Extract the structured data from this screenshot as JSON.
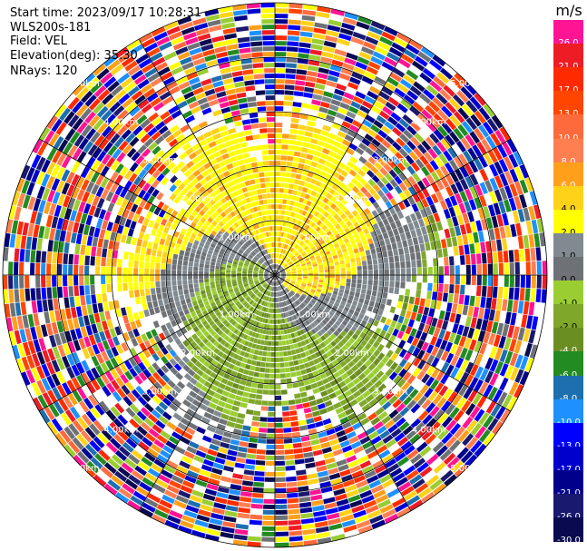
{
  "header": {
    "start_time": "Start time: 2023/09/17 10:28:31",
    "site": "WLS200s-181",
    "field": "Field: VEL",
    "elevation": "Elevation(deg): 35.30",
    "nrays": "NRays: 120"
  },
  "range_ring_labels": [
    "1.00km",
    "2.00km",
    "3.00km",
    "4.00km",
    "5.00km"
  ],
  "colorbar": {
    "unit": "m/s",
    "bins": [
      {
        "label": "26.0",
        "color": "#ff1493"
      },
      {
        "label": "21.0",
        "color": "#ee1c25"
      },
      {
        "label": "17.0",
        "color": "#ff2a00"
      },
      {
        "label": "13.0",
        "color": "#ff4500"
      },
      {
        "label": "10.0",
        "color": "#ff6a3c"
      },
      {
        "label": "8.0",
        "color": "#ff7f50"
      },
      {
        "label": "6.0",
        "color": "#ff9f1a"
      },
      {
        "label": "4.0",
        "color": "#ffd21a"
      },
      {
        "label": "2.0",
        "color": "#ffff00"
      },
      {
        "label": "1.0",
        "color": "#808a90"
      },
      {
        "label": "0.0",
        "color": "#6e7276"
      },
      {
        "label": "-1.0",
        "color": "#9acd32"
      },
      {
        "label": "-2.0",
        "color": "#7fa82a"
      },
      {
        "label": "-4.0",
        "color": "#6b8e23"
      },
      {
        "label": "-6.0",
        "color": "#228b22"
      },
      {
        "label": "-8.0",
        "color": "#1e6fb0"
      },
      {
        "label": "-10.0",
        "color": "#1e90ff"
      },
      {
        "label": "-13.0",
        "color": "#0000ff"
      },
      {
        "label": "-17.0",
        "color": "#0000cd"
      },
      {
        "label": "-21.0",
        "color": "#00008b"
      },
      {
        "label": "-26.0",
        "color": "#191970"
      },
      {
        "label": "-30.0",
        "color": "#0a0a50"
      }
    ]
  }
}
